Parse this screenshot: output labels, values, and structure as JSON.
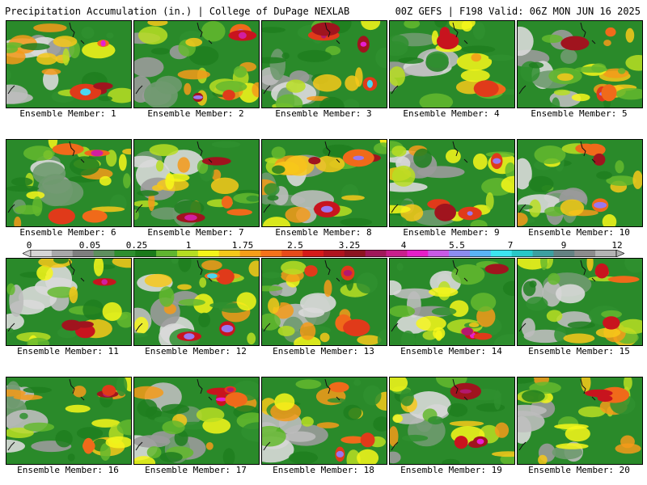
{
  "header": {
    "title_left": "Precipitation Accumulation (in.) | College of DuPage NEXLAB",
    "title_right": "00Z GEFS | F198 Valid: 06Z MON JUN 16 2025"
  },
  "colorbar": {
    "tick_labels": [
      "0",
      "0.05",
      "0.25",
      "1",
      "1.75",
      "2.5",
      "3.25",
      "4",
      "5.5",
      "7",
      "9",
      "12"
    ],
    "colors": [
      "#d6d6d6",
      "#a8a8a8",
      "#7e7e7e",
      "#5e8f5e",
      "#2e8f2e",
      "#1a7a1a",
      "#5fb52f",
      "#b5dd22",
      "#f5f519",
      "#f5c819",
      "#f59e19",
      "#f57219",
      "#e84a19",
      "#d61919",
      "#b0141e",
      "#8c1420",
      "#a0185a",
      "#c81e8c",
      "#e61ec8",
      "#c85ae6",
      "#8c8cf0",
      "#5ab4f5",
      "#3ce6f0",
      "#28c8c8",
      "#3ca0a0",
      "#648282",
      "#8c8c8c",
      "#b4b4b4"
    ]
  },
  "panels": [
    {
      "label": "Ensemble Member: 1"
    },
    {
      "label": "Ensemble Member: 2"
    },
    {
      "label": "Ensemble Member: 3"
    },
    {
      "label": "Ensemble Member: 4"
    },
    {
      "label": "Ensemble Member: 5"
    },
    {
      "label": "Ensemble Member: 6"
    },
    {
      "label": "Ensemble Member: 7"
    },
    {
      "label": "Ensemble Member: 8"
    },
    {
      "label": "Ensemble Member: 9"
    },
    {
      "label": "Ensemble Member: 10"
    },
    {
      "label": "Ensemble Member: 11"
    },
    {
      "label": "Ensemble Member: 12"
    },
    {
      "label": "Ensemble Member: 13"
    },
    {
      "label": "Ensemble Member: 14"
    },
    {
      "label": "Ensemble Member: 15"
    },
    {
      "label": "Ensemble Member: 16"
    },
    {
      "label": "Ensemble Member: 17"
    },
    {
      "label": "Ensemble Member: 18"
    },
    {
      "label": "Ensemble Member: 19"
    },
    {
      "label": "Ensemble Member: 20"
    }
  ]
}
